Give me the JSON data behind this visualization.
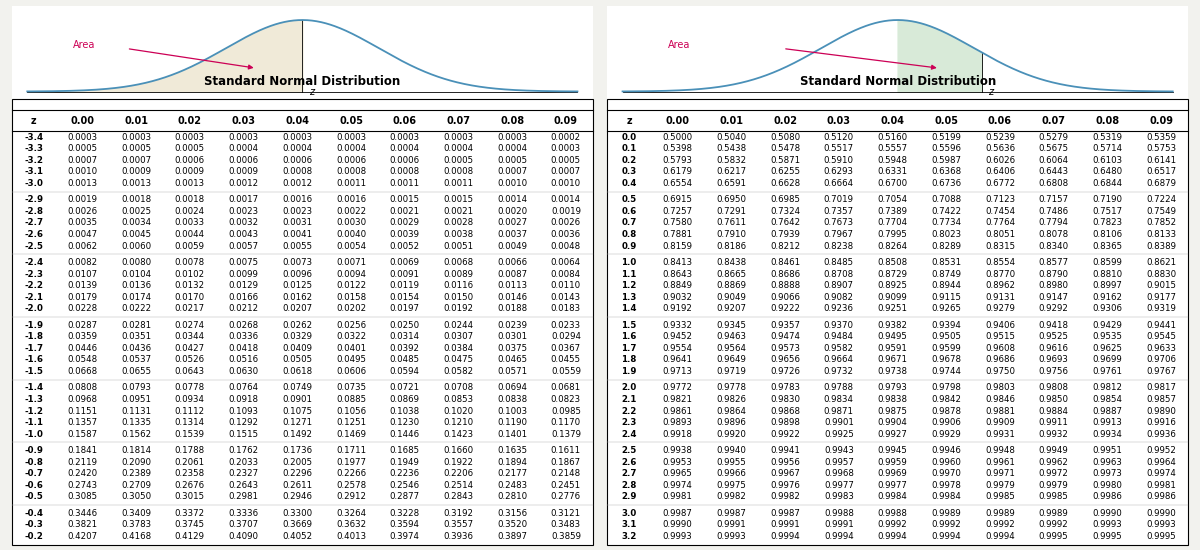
{
  "title": "Standard Normal Distribution",
  "col_headers": [
    "0.00",
    "0.01",
    "0.02",
    "0.03",
    "0.04",
    "0.05",
    "0.06",
    "0.07",
    "0.08",
    "0.09"
  ],
  "left_table": {
    "rows": [
      [
        "-3.4",
        "0.0003",
        "0.0003",
        "0.0003",
        "0.0003",
        "0.0003",
        "0.0003",
        "0.0003",
        "0.0003",
        "0.0003",
        "0.0002"
      ],
      [
        "-3.3",
        "0.0005",
        "0.0005",
        "0.0005",
        "0.0004",
        "0.0004",
        "0.0004",
        "0.0004",
        "0.0004",
        "0.0004",
        "0.0003"
      ],
      [
        "-3.2",
        "0.0007",
        "0.0007",
        "0.0006",
        "0.0006",
        "0.0006",
        "0.0006",
        "0.0006",
        "0.0005",
        "0.0005",
        "0.0005"
      ],
      [
        "-3.1",
        "0.0010",
        "0.0009",
        "0.0009",
        "0.0009",
        "0.0008",
        "0.0008",
        "0.0008",
        "0.0008",
        "0.0007",
        "0.0007"
      ],
      [
        "-3.0",
        "0.0013",
        "0.0013",
        "0.0013",
        "0.0012",
        "0.0012",
        "0.0011",
        "0.0011",
        "0.0011",
        "0.0010",
        "0.0010"
      ],
      [
        "-2.9",
        "0.0019",
        "0.0018",
        "0.0018",
        "0.0017",
        "0.0016",
        "0.0016",
        "0.0015",
        "0.0015",
        "0.0014",
        "0.0014"
      ],
      [
        "-2.8",
        "0.0026",
        "0.0025",
        "0.0024",
        "0.0023",
        "0.0023",
        "0.0022",
        "0.0021",
        "0.0021",
        "0.0020",
        "0.0019"
      ],
      [
        "-2.7",
        "0.0035",
        "0.0034",
        "0.0033",
        "0.0032",
        "0.0031",
        "0.0030",
        "0.0029",
        "0.0028",
        "0.0027",
        "0.0026"
      ],
      [
        "-2.6",
        "0.0047",
        "0.0045",
        "0.0044",
        "0.0043",
        "0.0041",
        "0.0040",
        "0.0039",
        "0.0038",
        "0.0037",
        "0.0036"
      ],
      [
        "-2.5",
        "0.0062",
        "0.0060",
        "0.0059",
        "0.0057",
        "0.0055",
        "0.0054",
        "0.0052",
        "0.0051",
        "0.0049",
        "0.0048"
      ],
      [
        "-2.4",
        "0.0082",
        "0.0080",
        "0.0078",
        "0.0075",
        "0.0073",
        "0.0071",
        "0.0069",
        "0.0068",
        "0.0066",
        "0.0064"
      ],
      [
        "-2.3",
        "0.0107",
        "0.0104",
        "0.0102",
        "0.0099",
        "0.0096",
        "0.0094",
        "0.0091",
        "0.0089",
        "0.0087",
        "0.0084"
      ],
      [
        "-2.2",
        "0.0139",
        "0.0136",
        "0.0132",
        "0.0129",
        "0.0125",
        "0.0122",
        "0.0119",
        "0.0116",
        "0.0113",
        "0.0110"
      ],
      [
        "-2.1",
        "0.0179",
        "0.0174",
        "0.0170",
        "0.0166",
        "0.0162",
        "0.0158",
        "0.0154",
        "0.0150",
        "0.0146",
        "0.0143"
      ],
      [
        "-2.0",
        "0.0228",
        "0.0222",
        "0.0217",
        "0.0212",
        "0.0207",
        "0.0202",
        "0.0197",
        "0.0192",
        "0.0188",
        "0.0183"
      ],
      [
        "-1.9",
        "0.0287",
        "0.0281",
        "0.0274",
        "0.0268",
        "0.0262",
        "0.0256",
        "0.0250",
        "0.0244",
        "0.0239",
        "0.0233"
      ],
      [
        "-1.8",
        "0.0359",
        "0.0351",
        "0.0344",
        "0.0336",
        "0.0329",
        "0.0322",
        "0.0314",
        "0.0307",
        "0.0301",
        "0.0294"
      ],
      [
        "-1.7",
        "0.0446",
        "0.0436",
        "0.0427",
        "0.0418",
        "0.0409",
        "0.0401",
        "0.0392",
        "0.0384",
        "0.0375",
        "0.0367"
      ],
      [
        "-1.6",
        "0.0548",
        "0.0537",
        "0.0526",
        "0.0516",
        "0.0505",
        "0.0495",
        "0.0485",
        "0.0475",
        "0.0465",
        "0.0455"
      ],
      [
        "-1.5",
        "0.0668",
        "0.0655",
        "0.0643",
        "0.0630",
        "0.0618",
        "0.0606",
        "0.0594",
        "0.0582",
        "0.0571",
        "0.0559"
      ],
      [
        "-1.4",
        "0.0808",
        "0.0793",
        "0.0778",
        "0.0764",
        "0.0749",
        "0.0735",
        "0.0721",
        "0.0708",
        "0.0694",
        "0.0681"
      ],
      [
        "-1.3",
        "0.0968",
        "0.0951",
        "0.0934",
        "0.0918",
        "0.0901",
        "0.0885",
        "0.0869",
        "0.0853",
        "0.0838",
        "0.0823"
      ],
      [
        "-1.2",
        "0.1151",
        "0.1131",
        "0.1112",
        "0.1093",
        "0.1075",
        "0.1056",
        "0.1038",
        "0.1020",
        "0.1003",
        "0.0985"
      ],
      [
        "-1.1",
        "0.1357",
        "0.1335",
        "0.1314",
        "0.1292",
        "0.1271",
        "0.1251",
        "0.1230",
        "0.1210",
        "0.1190",
        "0.1170"
      ],
      [
        "-1.0",
        "0.1587",
        "0.1562",
        "0.1539",
        "0.1515",
        "0.1492",
        "0.1469",
        "0.1446",
        "0.1423",
        "0.1401",
        "0.1379"
      ],
      [
        "-0.9",
        "0.1841",
        "0.1814",
        "0.1788",
        "0.1762",
        "0.1736",
        "0.1711",
        "0.1685",
        "0.1660",
        "0.1635",
        "0.1611"
      ],
      [
        "-0.8",
        "0.2119",
        "0.2090",
        "0.2061",
        "0.2033",
        "0.2005",
        "0.1977",
        "0.1949",
        "0.1922",
        "0.1894",
        "0.1867"
      ],
      [
        "-0.7",
        "0.2420",
        "0.2389",
        "0.2358",
        "0.2327",
        "0.2296",
        "0.2266",
        "0.2236",
        "0.2206",
        "0.2177",
        "0.2148"
      ],
      [
        "-0.6",
        "0.2743",
        "0.2709",
        "0.2676",
        "0.2643",
        "0.2611",
        "0.2578",
        "0.2546",
        "0.2514",
        "0.2483",
        "0.2451"
      ],
      [
        "-0.5",
        "0.3085",
        "0.3050",
        "0.3015",
        "0.2981",
        "0.2946",
        "0.2912",
        "0.2877",
        "0.2843",
        "0.2810",
        "0.2776"
      ],
      [
        "-0.4",
        "0.3446",
        "0.3409",
        "0.3372",
        "0.3336",
        "0.3300",
        "0.3264",
        "0.3228",
        "0.3192",
        "0.3156",
        "0.3121"
      ],
      [
        "-0.3",
        "0.3821",
        "0.3783",
        "0.3745",
        "0.3707",
        "0.3669",
        "0.3632",
        "0.3594",
        "0.3557",
        "0.3520",
        "0.3483"
      ],
      [
        "-0.2",
        "0.4207",
        "0.4168",
        "0.4129",
        "0.4090",
        "0.4052",
        "0.4013",
        "0.3974",
        "0.3936",
        "0.3897",
        "0.3859"
      ]
    ]
  },
  "right_table": {
    "rows": [
      [
        "0.0",
        "0.5000",
        "0.5040",
        "0.5080",
        "0.5120",
        "0.5160",
        "0.5199",
        "0.5239",
        "0.5279",
        "0.5319",
        "0.5359"
      ],
      [
        "0.1",
        "0.5398",
        "0.5438",
        "0.5478",
        "0.5517",
        "0.5557",
        "0.5596",
        "0.5636",
        "0.5675",
        "0.5714",
        "0.5753"
      ],
      [
        "0.2",
        "0.5793",
        "0.5832",
        "0.5871",
        "0.5910",
        "0.5948",
        "0.5987",
        "0.6026",
        "0.6064",
        "0.6103",
        "0.6141"
      ],
      [
        "0.3",
        "0.6179",
        "0.6217",
        "0.6255",
        "0.6293",
        "0.6331",
        "0.6368",
        "0.6406",
        "0.6443",
        "0.6480",
        "0.6517"
      ],
      [
        "0.4",
        "0.6554",
        "0.6591",
        "0.6628",
        "0.6664",
        "0.6700",
        "0.6736",
        "0.6772",
        "0.6808",
        "0.6844",
        "0.6879"
      ],
      [
        "0.5",
        "0.6915",
        "0.6950",
        "0.6985",
        "0.7019",
        "0.7054",
        "0.7088",
        "0.7123",
        "0.7157",
        "0.7190",
        "0.7224"
      ],
      [
        "0.6",
        "0.7257",
        "0.7291",
        "0.7324",
        "0.7357",
        "0.7389",
        "0.7422",
        "0.7454",
        "0.7486",
        "0.7517",
        "0.7549"
      ],
      [
        "0.7",
        "0.7580",
        "0.7611",
        "0.7642",
        "0.7673",
        "0.7704",
        "0.7734",
        "0.7764",
        "0.7794",
        "0.7823",
        "0.7852"
      ],
      [
        "0.8",
        "0.7881",
        "0.7910",
        "0.7939",
        "0.7967",
        "0.7995",
        "0.8023",
        "0.8051",
        "0.8078",
        "0.8106",
        "0.8133"
      ],
      [
        "0.9",
        "0.8159",
        "0.8186",
        "0.8212",
        "0.8238",
        "0.8264",
        "0.8289",
        "0.8315",
        "0.8340",
        "0.8365",
        "0.8389"
      ],
      [
        "1.0",
        "0.8413",
        "0.8438",
        "0.8461",
        "0.8485",
        "0.8508",
        "0.8531",
        "0.8554",
        "0.8577",
        "0.8599",
        "0.8621"
      ],
      [
        "1.1",
        "0.8643",
        "0.8665",
        "0.8686",
        "0.8708",
        "0.8729",
        "0.8749",
        "0.8770",
        "0.8790",
        "0.8810",
        "0.8830"
      ],
      [
        "1.2",
        "0.8849",
        "0.8869",
        "0.8888",
        "0.8907",
        "0.8925",
        "0.8944",
        "0.8962",
        "0.8980",
        "0.8997",
        "0.9015"
      ],
      [
        "1.3",
        "0.9032",
        "0.9049",
        "0.9066",
        "0.9082",
        "0.9099",
        "0.9115",
        "0.9131",
        "0.9147",
        "0.9162",
        "0.9177"
      ],
      [
        "1.4",
        "0.9192",
        "0.9207",
        "0.9222",
        "0.9236",
        "0.9251",
        "0.9265",
        "0.9279",
        "0.9292",
        "0.9306",
        "0.9319"
      ],
      [
        "1.5",
        "0.9332",
        "0.9345",
        "0.9357",
        "0.9370",
        "0.9382",
        "0.9394",
        "0.9406",
        "0.9418",
        "0.9429",
        "0.9441"
      ],
      [
        "1.6",
        "0.9452",
        "0.9463",
        "0.9474",
        "0.9484",
        "0.9495",
        "0.9505",
        "0.9515",
        "0.9525",
        "0.9535",
        "0.9545"
      ],
      [
        "1.7",
        "0.9554",
        "0.9564",
        "0.9573",
        "0.9582",
        "0.9591",
        "0.9599",
        "0.9608",
        "0.9616",
        "0.9625",
        "0.9633"
      ],
      [
        "1.8",
        "0.9641",
        "0.9649",
        "0.9656",
        "0.9664",
        "0.9671",
        "0.9678",
        "0.9686",
        "0.9693",
        "0.9699",
        "0.9706"
      ],
      [
        "1.9",
        "0.9713",
        "0.9719",
        "0.9726",
        "0.9732",
        "0.9738",
        "0.9744",
        "0.9750",
        "0.9756",
        "0.9761",
        "0.9767"
      ],
      [
        "2.0",
        "0.9772",
        "0.9778",
        "0.9783",
        "0.9788",
        "0.9793",
        "0.9798",
        "0.9803",
        "0.9808",
        "0.9812",
        "0.9817"
      ],
      [
        "2.1",
        "0.9821",
        "0.9826",
        "0.9830",
        "0.9834",
        "0.9838",
        "0.9842",
        "0.9846",
        "0.9850",
        "0.9854",
        "0.9857"
      ],
      [
        "2.2",
        "0.9861",
        "0.9864",
        "0.9868",
        "0.9871",
        "0.9875",
        "0.9878",
        "0.9881",
        "0.9884",
        "0.9887",
        "0.9890"
      ],
      [
        "2.3",
        "0.9893",
        "0.9896",
        "0.9898",
        "0.9901",
        "0.9904",
        "0.9906",
        "0.9909",
        "0.9911",
        "0.9913",
        "0.9916"
      ],
      [
        "2.4",
        "0.9918",
        "0.9920",
        "0.9922",
        "0.9925",
        "0.9927",
        "0.9929",
        "0.9931",
        "0.9932",
        "0.9934",
        "0.9936"
      ],
      [
        "2.5",
        "0.9938",
        "0.9940",
        "0.9941",
        "0.9943",
        "0.9945",
        "0.9946",
        "0.9948",
        "0.9949",
        "0.9951",
        "0.9952"
      ],
      [
        "2.6",
        "0.9953",
        "0.9955",
        "0.9956",
        "0.9957",
        "0.9959",
        "0.9960",
        "0.9961",
        "0.9962",
        "0.9963",
        "0.9964"
      ],
      [
        "2.7",
        "0.9965",
        "0.9966",
        "0.9967",
        "0.9968",
        "0.9969",
        "0.9970",
        "0.9971",
        "0.9972",
        "0.9973",
        "0.9974"
      ],
      [
        "2.8",
        "0.9974",
        "0.9975",
        "0.9976",
        "0.9977",
        "0.9977",
        "0.9978",
        "0.9979",
        "0.9979",
        "0.9980",
        "0.9981"
      ],
      [
        "2.9",
        "0.9981",
        "0.9982",
        "0.9982",
        "0.9983",
        "0.9984",
        "0.9984",
        "0.9985",
        "0.9985",
        "0.9986",
        "0.9986"
      ],
      [
        "3.0",
        "0.9987",
        "0.9987",
        "0.9987",
        "0.9988",
        "0.9988",
        "0.9989",
        "0.9989",
        "0.9989",
        "0.9990",
        "0.9990"
      ],
      [
        "3.1",
        "0.9990",
        "0.9991",
        "0.9991",
        "0.9991",
        "0.9992",
        "0.9992",
        "0.9992",
        "0.9992",
        "0.9993",
        "0.9993"
      ],
      [
        "3.2",
        "0.9993",
        "0.9993",
        "0.9994",
        "0.9994",
        "0.9994",
        "0.9994",
        "0.9994",
        "0.9995",
        "0.9995",
        "0.9995"
      ]
    ]
  },
  "group_breaks_left": [
    5,
    10,
    15,
    20,
    25,
    30
  ],
  "group_breaks_right": [
    5,
    10,
    15,
    20,
    25,
    30
  ],
  "bg_color": "#f2f2ee",
  "table_bg": "#ffffff",
  "curve_color": "#4a90b8",
  "fill_color_left": "#f0ead8",
  "fill_color_right": "#d8ead8",
  "area_label_color": "#cc0055",
  "arrow_color": "#cc0055",
  "font_size_table": 6.2,
  "font_size_header": 7.0,
  "font_size_title": 8.5,
  "font_size_z": 7.0
}
